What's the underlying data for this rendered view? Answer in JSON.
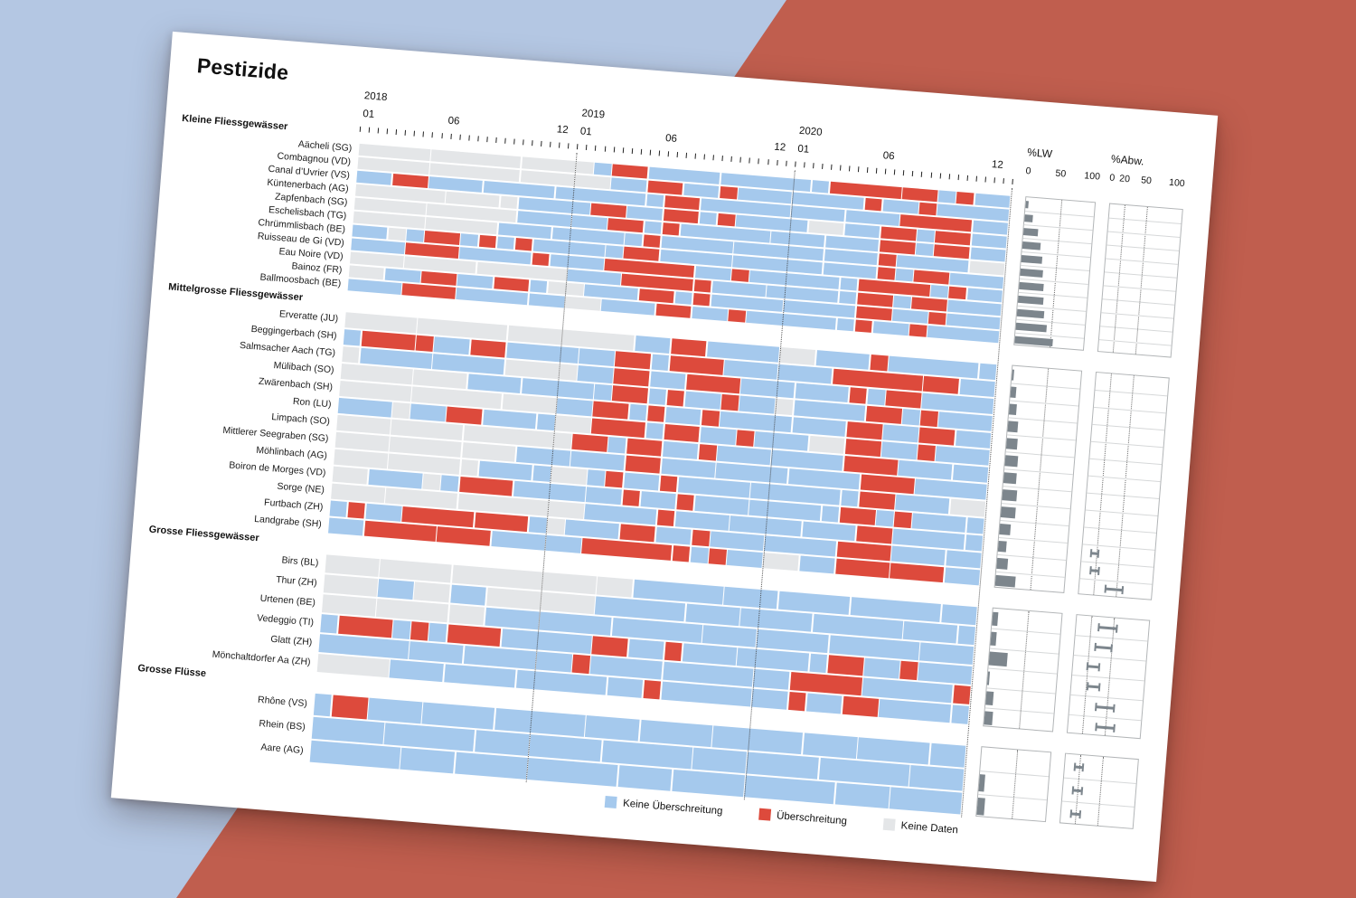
{
  "chart_data": {
    "type": "heatmap",
    "title": "Pestizide",
    "x_axis": {
      "years": [
        "2018",
        "2019",
        "2020"
      ],
      "month_labels": [
        "01",
        "06",
        "12"
      ],
      "months_per_year": 12,
      "range": [
        "2018-01",
        "2020-12"
      ]
    },
    "legend": [
      {
        "code": "B",
        "label": "Keine Überschreitung",
        "color": "#a5c9ed"
      },
      {
        "code": "R",
        "label": "Überschreitung",
        "color": "#dd4a3c"
      },
      {
        "code": "G",
        "label": "Keine Daten",
        "color": "#e4e6e8"
      }
    ],
    "side_axes": {
      "lw": {
        "label": "%LW",
        "ticks": [
          "0",
          "50",
          "100"
        ],
        "gridlines": [
          50
        ]
      },
      "abw": {
        "label": "%Abw.",
        "ticks": [
          "0",
          "20",
          "50",
          "100"
        ],
        "gridlines": [
          20,
          50
        ]
      }
    },
    "sections": [
      {
        "name": "Kleine Fliessgewässer",
        "rows": [
          {
            "label": "Aächeli (SG)",
            "pattern": "GGGGGGGGGGGGGBRRBBBBBBBBBBRRRRRRBRBB",
            "lw": 4,
            "abw": null
          },
          {
            "label": "Combagnou (VD)",
            "pattern": "GGGGGGGGGGGGGGBBRRBBRBBBBBBBRBBRBBBB",
            "lw": 12,
            "abw": null
          },
          {
            "label": "Canal d’Uvrier (VS)",
            "pattern": "BBRRBBBBBBBBBBBBBRRBBBBBBBBBBBRRRRBB",
            "lw": 20,
            "abw": null
          },
          {
            "label": "Küntenerbach (AG)",
            "pattern": "GGGGGGGGGBBBBRRBBRRBRBBBBGGBBRRBRRBB",
            "lw": 26,
            "abw": null
          },
          {
            "label": "Zapfenbach (SG)",
            "pattern": "GGGGGGGGGBBBBBRRBRBBBBBBBBBBBRRBRRBB",
            "lw": 30,
            "abw": null
          },
          {
            "label": "Eschelisbach (TG)",
            "pattern": "GGGGGGGGBBBBBBBBRBBBBBBBBBBBBRBBBBGG",
            "lw": 32,
            "abw": null
          },
          {
            "label": "Chrümmlisbach (BE)",
            "pattern": "BBGBRRBRBRBBBBBRRBBBBBBBBBBBBRBRRBBB",
            "lw": 34,
            "abw": null
          },
          {
            "label": "Ruisseau de Gi (VD)",
            "pattern": "BBBRRRBBBBRBBBRRRRRBBRBBBBBBRRRRBRBB",
            "lw": 36,
            "abw": null
          },
          {
            "label": "Eau Noire (VD)",
            "pattern": "GGGGGGGGGGGGBBBRRRRRBBBBBBBBRRBRRBBB",
            "lw": 38,
            "abw": null
          },
          {
            "label": "Bainoz (FR)",
            "pattern": "GGBBRRBBRRBGGBBBRRBRBBBBBBBBRRBBRBBB",
            "lw": 44,
            "abw": null
          },
          {
            "label": "Ballmoosbach (BE)",
            "pattern": "BBBRRRBBBBBBGGBBBRRBBRBBBBBBRBBRBBBB",
            "lw": 54,
            "abw": null
          }
        ]
      },
      {
        "name": "Mittelgrosse Fliessgewässer",
        "rows": [
          {
            "label": "Erveratte (JU)",
            "pattern": "GGGGGGGGGGGGGGGGBBRRBBBBGGBBBRBBBBBB",
            "lw": 2,
            "abw": null
          },
          {
            "label": "Beggingerbach (SH)",
            "pattern": "BRRRRBBRRBBBBBBRRBRRRBBBBBBRRRRRRRBB",
            "lw": 8,
            "abw": null
          },
          {
            "label": "Salmsacher Aach (TG)",
            "pattern": "GBBBBBBBBGGGGBBRRBBRRRBBBBBBRBRRBBBB",
            "lw": 10,
            "abw": null
          },
          {
            "label": "Mülibach (SO)",
            "pattern": "GGGGGGGBBBBBBBBRRBRBBRBBGBBBBRRBRBBB",
            "lw": 14,
            "abw": null
          },
          {
            "label": "Zwärenbach (SH)",
            "pattern": "GGGGGGGGGGGGBBRRBRBBRBBBBBBBRRBBRRBB",
            "lw": 16,
            "abw": null
          },
          {
            "label": "Ron (LU)",
            "pattern": "BBBGBBRRBBBBGGRRRBRRBBRBBBGGRRBBRBBB",
            "lw": 18,
            "abw": null
          },
          {
            "label": "Limpach (SO)",
            "pattern": "GGGGGGGGGGGGGRRBRRBBRBBBBBBBRRRBBBBB",
            "lw": 18,
            "abw": null
          },
          {
            "label": "Mittlerer Seegraben (SG)",
            "pattern": "GGGGGGGGGGBBBBBBRRBBBBBBBBBBBRRRBBBB",
            "lw": 20,
            "abw": null
          },
          {
            "label": "Möhlinbach (AG)",
            "pattern": "GGGGGGGGBBBBGGBRBBRBBBBBBBBBBRRBBBGG",
            "lw": 20,
            "abw": null
          },
          {
            "label": "Boiron de Morges (VD)",
            "pattern": "GGBBBGBRRRBBBBBBRBBRBBBBBBBBRRBRBBBB",
            "lw": 15,
            "abw": null
          },
          {
            "label": "Sorge (NE)",
            "pattern": "GGGGGGGGGGGGGGBBBBRBBBBBBBBBBRRBBBBB",
            "lw": 12,
            "abw": [
              12,
              22
            ]
          },
          {
            "label": "Furtbach (ZH)",
            "pattern": "BRBBRRRRRRRBGBBBRRBBRBBBBBBBRRRBBBBB",
            "lw": 15,
            "abw": [
              13,
              24
            ]
          },
          {
            "label": "Landgrabe (SH)",
            "pattern": "BBRRRRRRRBBBBBRRRRRRBRBBGGBBRRRRRRBB",
            "lw": 28,
            "abw": [
              35,
              58
            ]
          }
        ]
      },
      {
        "name": "Grosse Fliessgewässer",
        "rows": [
          {
            "label": "Birs (BL)",
            "pattern": "GGGGGGGGGGGGGGGGGBBBBBBBBBBBBBBBBBBB",
            "lw": 8,
            "abw": [
              30,
              55
            ]
          },
          {
            "label": "Thur (ZH)",
            "pattern": "GGGBBGGBBGGGGGGBBBBBBBBBBBBBBBBBBBBB",
            "lw": 8,
            "abw": [
              28,
              50
            ]
          },
          {
            "label": "Urtenen (BE)",
            "pattern": "GGGGGGGGGBBBBBBBBBBBBBBBBBBBBBBBBBBB",
            "lw": 25,
            "abw": [
              20,
              35
            ]
          },
          {
            "label": "Vedeggio (TI)",
            "pattern": "BRRRBRBRRRBBBBBRRBBRBBBBBBBBRRBBRBBB",
            "lw": 2,
            "abw": [
              22,
              38
            ]
          },
          {
            "label": "Glatt (ZH)",
            "pattern": "BBBBBBBBBBBBBBRBBBBBBBBBBBRRRRBBBBBR",
            "lw": 10,
            "abw": [
              35,
              60
            ]
          },
          {
            "label": "Mönchaltdorfer Aa (ZH)",
            "pattern": "GGGGBBBBBBBBBBBBBBRBBBBBBBRBBRRBBBBB",
            "lw": 12,
            "abw": [
              38,
              62
            ]
          }
        ]
      },
      {
        "name": "Grosse Flüsse",
        "rows": [
          {
            "label": "Rhône (VS)",
            "pattern": "BRRBBBBBBBBBBBBBBBBBBBBBBBBBBBBBBBBB",
            "lw": 0,
            "abw": [
              14,
              24
            ]
          },
          {
            "label": "Rhein (BS)",
            "pattern": "BBBBBBBBBBBBBBBBBBBBBBBBBBBBBBBBBBBB",
            "lw": 8,
            "abw": [
              13,
              25
            ]
          },
          {
            "label": "Aare (AG)",
            "pattern": "BBBBBBBBBBBBBBBBBBBBBBBBBBBBBBBBBBBB",
            "lw": 10,
            "abw": [
              14,
              26
            ]
          }
        ]
      }
    ]
  }
}
